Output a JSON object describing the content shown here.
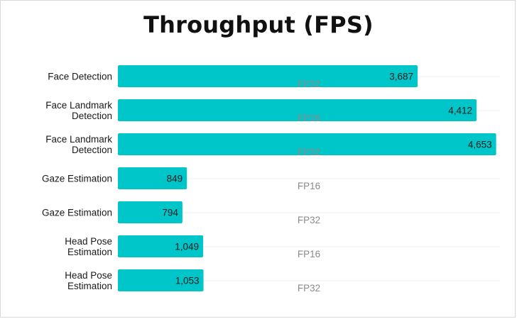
{
  "chart_data": {
    "type": "bar",
    "orientation": "horizontal",
    "title": "Throughput (FPS)",
    "grid": true,
    "xlim": [
      0,
      4700
    ],
    "bar_color": "#00c5c9",
    "rows": [
      {
        "category": [
          "Face Detection"
        ],
        "precision": "FP32",
        "value": 3687,
        "label": "3,687"
      },
      {
        "category": [
          "Face Landmark",
          "Detection"
        ],
        "precision": "FP16",
        "value": 4412,
        "label": "4,412"
      },
      {
        "category": [
          "Face Landmark",
          "Detection"
        ],
        "precision": "FP32",
        "value": 4653,
        "label": "4,653"
      },
      {
        "category": [
          "Gaze Estimation"
        ],
        "precision": "FP16",
        "value": 849,
        "label": "849"
      },
      {
        "category": [
          "Gaze Estimation"
        ],
        "precision": "FP32",
        "value": 794,
        "label": "794"
      },
      {
        "category": [
          "Head Pose",
          "Estimation"
        ],
        "precision": "FP16",
        "value": 1049,
        "label": "1,049"
      },
      {
        "category": [
          "Head Pose",
          "Estimation"
        ],
        "precision": "FP32",
        "value": 1053,
        "label": "1,053"
      }
    ]
  }
}
